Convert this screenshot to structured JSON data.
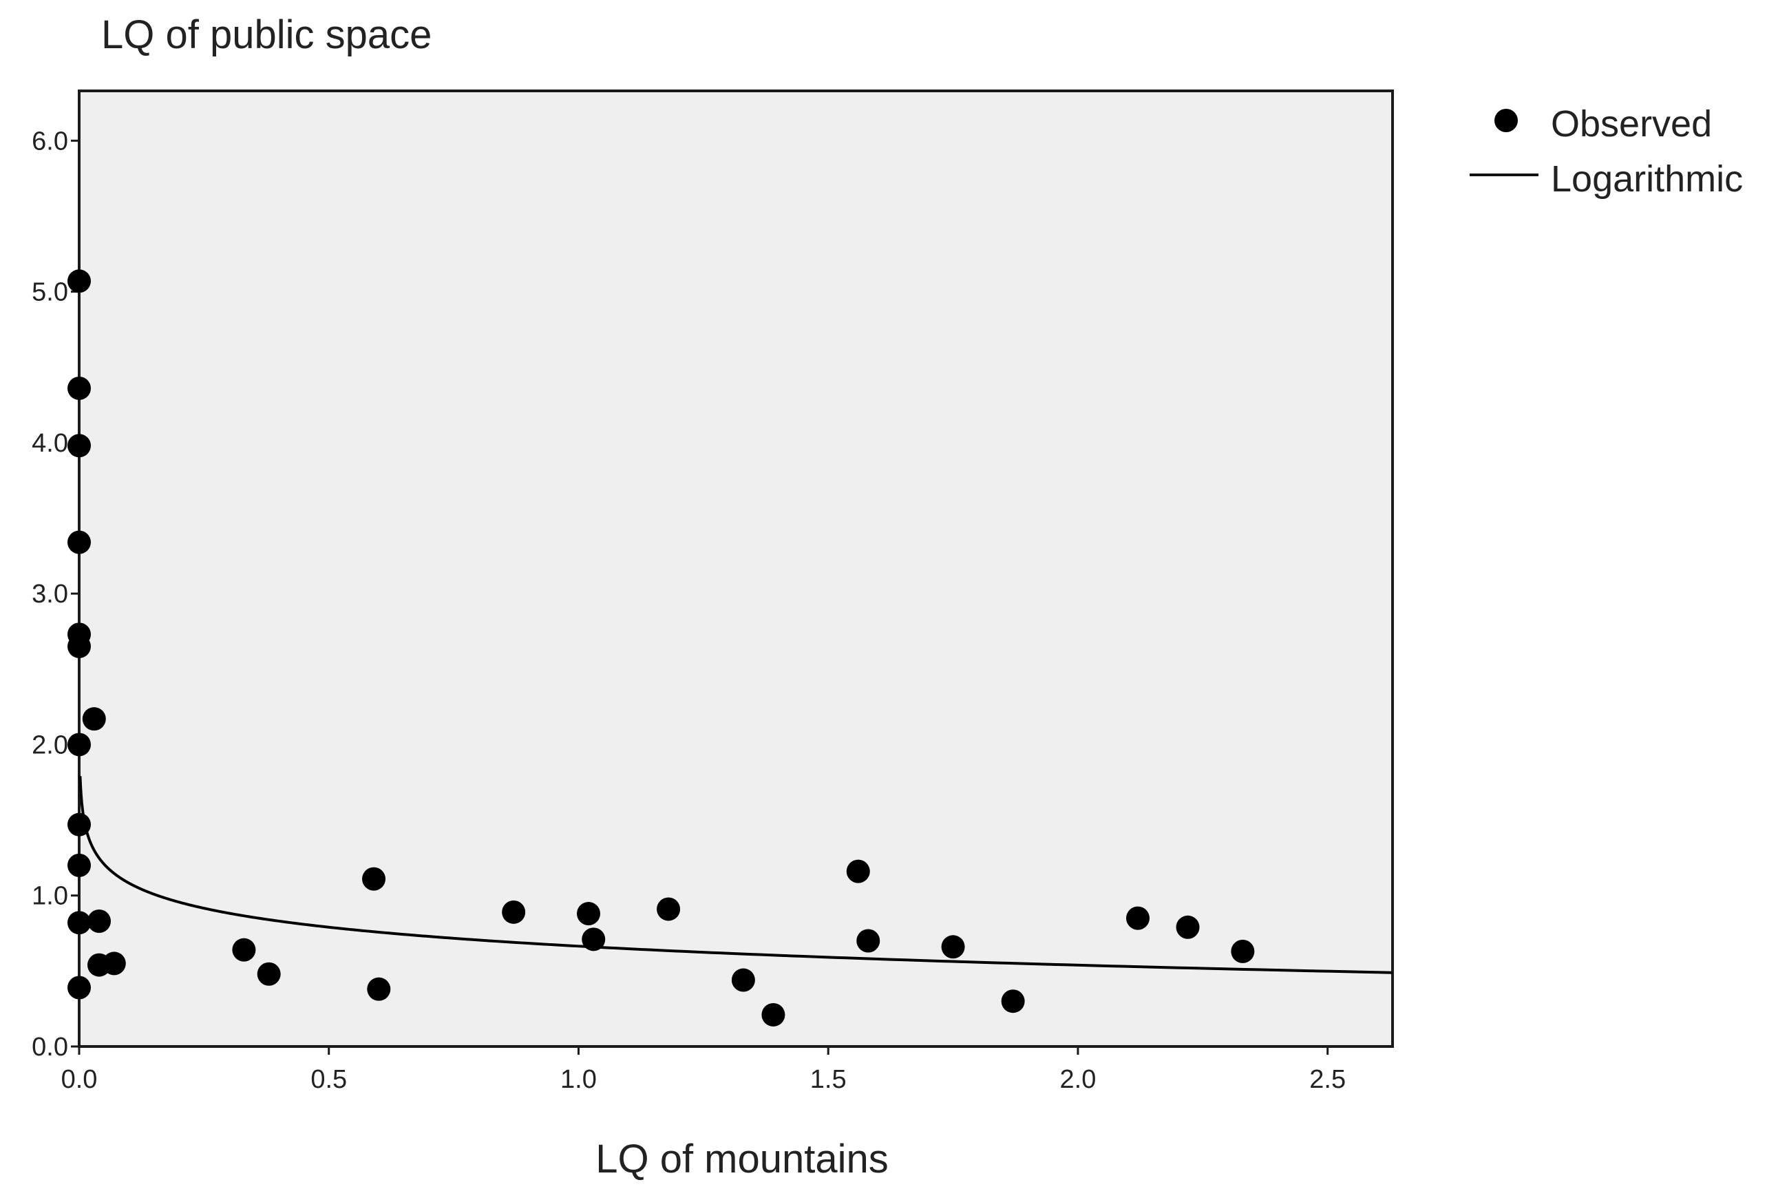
{
  "chart_data": {
    "type": "scatter",
    "title": "",
    "xlabel": "LQ of mountains",
    "ylabel": "LQ of public space",
    "xlim": [
      0.0,
      2.63
    ],
    "ylim": [
      0.0,
      6.33
    ],
    "x_ticks": [
      "0.0",
      "0.5",
      "1.0",
      "1.5",
      "2.0",
      "2.5"
    ],
    "y_ticks": [
      "0.0",
      "1.0",
      "2.0",
      "3.0",
      "4.0",
      "5.0",
      "6.0"
    ],
    "plot_background": "#efefef",
    "grid": false,
    "legend_position": "right",
    "legend": [
      "Observed",
      "Logarithmic"
    ],
    "series": [
      {
        "name": "Observed",
        "kind": "points",
        "color": "#000000",
        "x": [
          0.0,
          0.0,
          0.0,
          0.0,
          0.0,
          0.0,
          0.0,
          0.0,
          0.0,
          0.0,
          0.0,
          0.03,
          0.04,
          0.04,
          0.07,
          0.33,
          0.38,
          0.59,
          0.6,
          0.87,
          1.02,
          1.03,
          1.18,
          1.33,
          1.39,
          1.56,
          1.58,
          1.75,
          1.87,
          2.12,
          2.22,
          2.33
        ],
        "y": [
          5.07,
          4.36,
          3.98,
          3.34,
          2.73,
          2.65,
          2.0,
          1.47,
          1.2,
          0.82,
          0.39,
          2.17,
          0.83,
          0.54,
          0.55,
          0.64,
          0.48,
          1.11,
          0.38,
          0.89,
          0.88,
          0.71,
          0.91,
          0.44,
          0.21,
          1.16,
          0.7,
          0.66,
          0.3,
          0.85,
          0.79,
          0.63
        ]
      },
      {
        "name": "Logarithmic",
        "kind": "fit-curve",
        "color": "#000000",
        "model": "y = 0.6645 - 0.1812 * ln(x)",
        "b0": 0.6645,
        "b1": -0.1812,
        "x_start": 0.002,
        "x_end": 2.63
      }
    ]
  }
}
